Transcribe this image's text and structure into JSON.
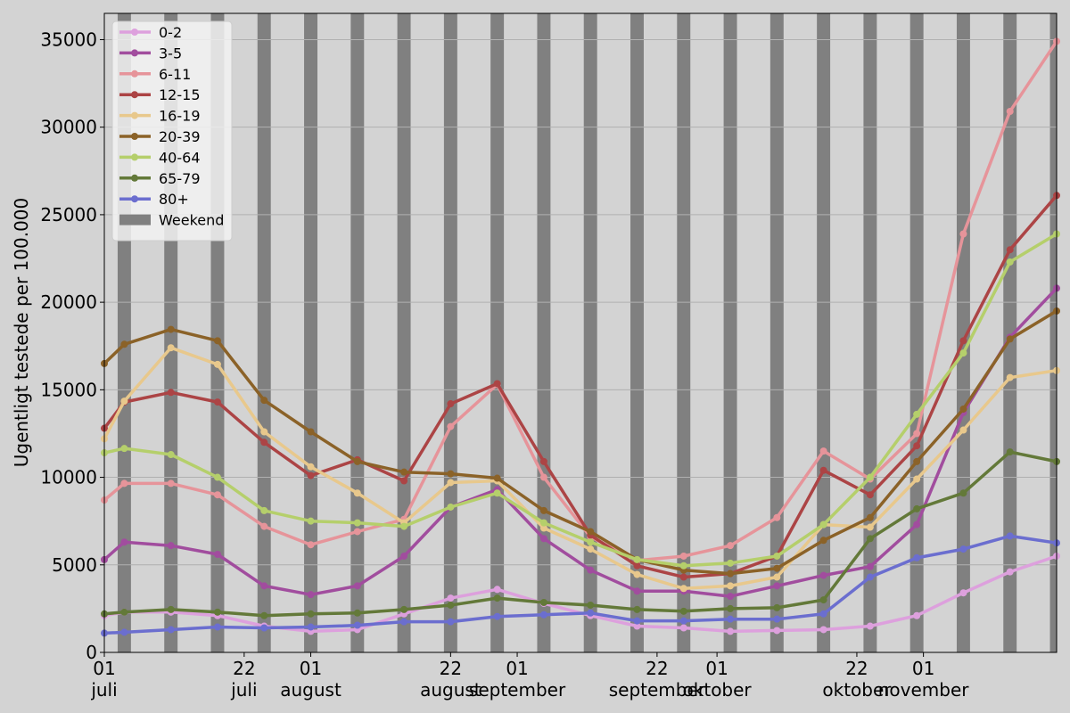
{
  "chart_data": {
    "type": "line",
    "ylabel": "Ugentligt testede per 100.000",
    "xlabel": "",
    "xlim": [
      "2021-07-01",
      "2021-11-21"
    ],
    "ylim": [
      0,
      36500
    ],
    "yticks": [
      0,
      5000,
      10000,
      15000,
      20000,
      25000,
      30000,
      35000
    ],
    "xticks": [
      {
        "date": "2021-07-01",
        "day": "01",
        "month": "juli"
      },
      {
        "date": "2021-07-22",
        "day": "22",
        "month": "juli"
      },
      {
        "date": "2021-08-01",
        "day": "01",
        "month": "august"
      },
      {
        "date": "2021-08-22",
        "day": "22",
        "month": "august"
      },
      {
        "date": "2021-09-01",
        "day": "01",
        "month": "september"
      },
      {
        "date": "2021-09-22",
        "day": "22",
        "month": "september"
      },
      {
        "date": "2021-10-01",
        "day": "01",
        "month": "oktober"
      },
      {
        "date": "2021-10-22",
        "day": "22",
        "month": "oktober"
      },
      {
        "date": "2021-11-01",
        "day": "01",
        "month": "november"
      }
    ],
    "grid": "horizontal",
    "legend_position": "top-left",
    "weekend_label": "Weekend",
    "weekend_color": "#808080",
    "background": "#d3d3d3",
    "dates": [
      "2021-07-01",
      "2021-07-04",
      "2021-07-11",
      "2021-07-18",
      "2021-07-25",
      "2021-08-01",
      "2021-08-08",
      "2021-08-15",
      "2021-08-22",
      "2021-08-29",
      "2021-09-05",
      "2021-09-12",
      "2021-09-19",
      "2021-09-26",
      "2021-10-03",
      "2021-10-10",
      "2021-10-17",
      "2021-10-24",
      "2021-10-31",
      "2021-11-07",
      "2021-11-14",
      "2021-11-21"
    ],
    "series": [
      {
        "name": "0-2",
        "color": "#dda0dd",
        "values": [
          2100,
          2300,
          2300,
          2100,
          1500,
          1200,
          1300,
          2200,
          3100,
          3600,
          2800,
          2100,
          1500,
          1400,
          1200,
          1250,
          1300,
          1500,
          2100,
          3400,
          4600,
          5500
        ]
      },
      {
        "name": "3-5",
        "color": "#a14d9e",
        "values": [
          5300,
          6300,
          6100,
          5600,
          3800,
          3300,
          3800,
          5500,
          8300,
          9300,
          6500,
          4700,
          3500,
          3500,
          3200,
          3800,
          4400,
          4900,
          7300,
          13700,
          18000,
          20800
        ]
      },
      {
        "name": "6-11",
        "color": "#e6949a",
        "values": [
          8700,
          9650,
          9650,
          9000,
          7200,
          6150,
          6900,
          7600,
          12900,
          15300,
          10000,
          6600,
          5250,
          5500,
          6100,
          7700,
          11500,
          9900,
          12500,
          23900,
          30900,
          34900
        ]
      },
      {
        "name": "12-15",
        "color": "#ac4445",
        "values": [
          12800,
          14300,
          14850,
          14300,
          12000,
          10100,
          11000,
          9800,
          14200,
          15350,
          10900,
          6700,
          4950,
          4300,
          4500,
          5500,
          10400,
          9000,
          11800,
          17800,
          23000,
          26100
        ]
      },
      {
        "name": "16-19",
        "color": "#e8c88c",
        "values": [
          12200,
          14350,
          17400,
          16450,
          12600,
          10600,
          9100,
          7400,
          9700,
          9800,
          7100,
          5900,
          4450,
          3650,
          3800,
          4300,
          7300,
          7150,
          9900,
          12700,
          15700,
          16100
        ]
      },
      {
        "name": "20-39",
        "color": "#8b6228",
        "values": [
          16500,
          17600,
          18450,
          17800,
          14400,
          12600,
          10900,
          10300,
          10200,
          9950,
          8100,
          6900,
          5300,
          4700,
          4500,
          4800,
          6400,
          7700,
          10900,
          13900,
          17900,
          19500
        ]
      },
      {
        "name": "40-64",
        "color": "#b5cf6b",
        "values": [
          11400,
          11650,
          11300,
          10000,
          8100,
          7500,
          7400,
          7200,
          8300,
          9100,
          7400,
          6300,
          5300,
          4950,
          5100,
          5500,
          7300,
          10000,
          13600,
          17100,
          22300,
          23900
        ]
      },
      {
        "name": "65-79",
        "color": "#637939",
        "values": [
          2200,
          2300,
          2450,
          2300,
          2100,
          2200,
          2250,
          2450,
          2700,
          3100,
          2850,
          2700,
          2450,
          2350,
          2500,
          2550,
          3000,
          6500,
          8200,
          9100,
          11450,
          10900
        ]
      },
      {
        "name": "80+",
        "color": "#6b6ecf",
        "values": [
          1100,
          1150,
          1300,
          1450,
          1400,
          1450,
          1550,
          1750,
          1750,
          2050,
          2150,
          2250,
          1800,
          1800,
          1900,
          1900,
          2200,
          4300,
          5400,
          5900,
          6650,
          6250
        ]
      }
    ]
  }
}
